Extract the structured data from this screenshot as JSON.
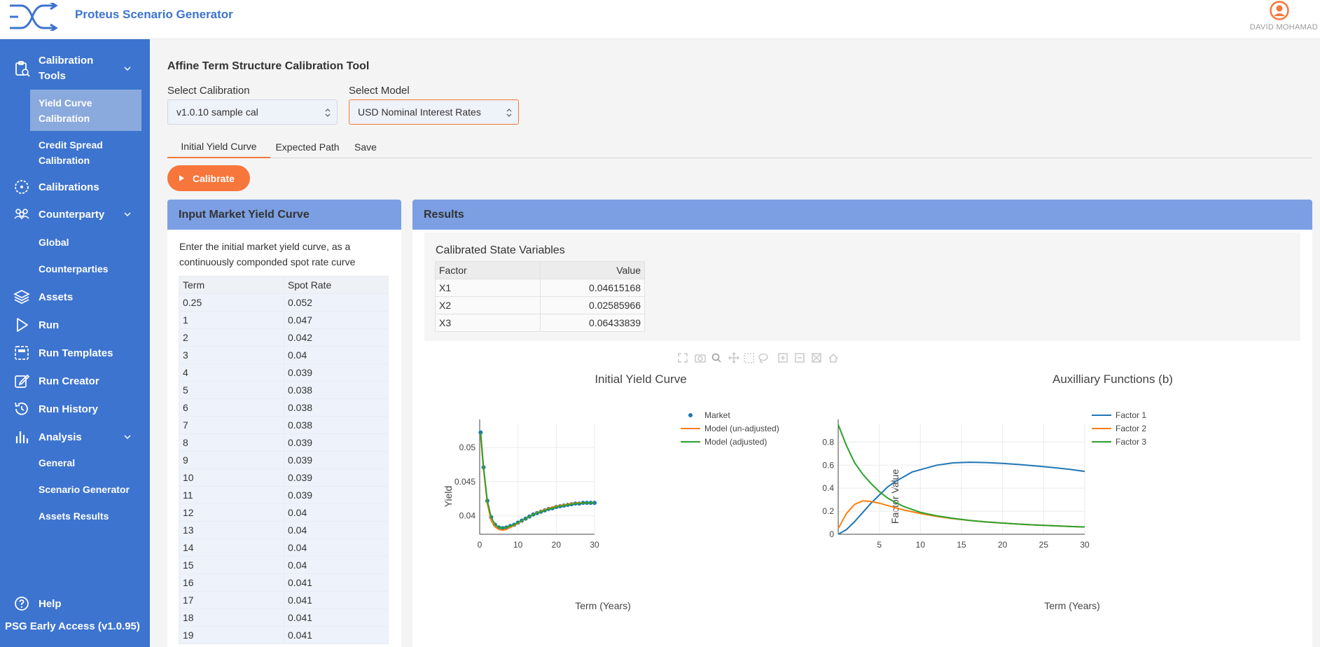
{
  "header": {
    "title": "Proteus Scenario Generator",
    "user_name": "DAVID MOHAMAD"
  },
  "sidebar": {
    "items": [
      {
        "label": "Calibration Tools",
        "icon": "clipboard-icon"
      },
      {
        "label": "Yield Curve Calibration"
      },
      {
        "label": "Credit Spread Calibration"
      },
      {
        "label": "Calibrations",
        "icon": "target-icon"
      },
      {
        "label": "Counterparty",
        "icon": "people-icon"
      },
      {
        "label": "Global"
      },
      {
        "label": "Counterparties"
      },
      {
        "label": "Assets",
        "icon": "layers-icon"
      },
      {
        "label": "Run",
        "icon": "play-icon"
      },
      {
        "label": "Run Templates",
        "icon": "template-icon"
      },
      {
        "label": "Run Creator",
        "icon": "edit-icon"
      },
      {
        "label": "Run History",
        "icon": "history-icon"
      },
      {
        "label": "Analysis",
        "icon": "bar-chart-icon"
      },
      {
        "label": "General"
      },
      {
        "label": "Scenario Generator"
      },
      {
        "label": "Assets Results"
      },
      {
        "label": "Help",
        "icon": "help-icon"
      }
    ],
    "version": "PSG Early Access (v1.0.95)"
  },
  "main": {
    "title": "Affine Term Structure Calibration Tool",
    "select_calibration_label": "Select Calibration",
    "select_calibration_value": "v1.0.10 sample cal",
    "select_model_label": "Select Model",
    "select_model_value": "USD Nominal Interest Rates",
    "tabs": [
      "Initial Yield Curve",
      "Expected Path",
      "Save"
    ],
    "active_tab": "Initial Yield Curve",
    "calibrate_label": "Calibrate"
  },
  "input_card": {
    "title": "Input Market Yield Curve",
    "description": "Enter the initial market yield curve, as a continuously componded spot rate curve",
    "columns": [
      "Term",
      "Spot Rate"
    ],
    "rows": [
      [
        "0.25",
        "0.052"
      ],
      [
        "1",
        "0.047"
      ],
      [
        "2",
        "0.042"
      ],
      [
        "3",
        "0.04"
      ],
      [
        "4",
        "0.039"
      ],
      [
        "5",
        "0.038"
      ],
      [
        "6",
        "0.038"
      ],
      [
        "7",
        "0.038"
      ],
      [
        "8",
        "0.039"
      ],
      [
        "9",
        "0.039"
      ],
      [
        "10",
        "0.039"
      ],
      [
        "11",
        "0.039"
      ],
      [
        "12",
        "0.04"
      ],
      [
        "13",
        "0.04"
      ],
      [
        "14",
        "0.04"
      ],
      [
        "15",
        "0.04"
      ],
      [
        "16",
        "0.041"
      ],
      [
        "17",
        "0.041"
      ],
      [
        "18",
        "0.041"
      ],
      [
        "19",
        "0.041"
      ]
    ]
  },
  "results_card": {
    "title": "Results",
    "state_title": "Calibrated State Variables",
    "state_columns": [
      "Factor",
      "Value"
    ],
    "state_rows": [
      [
        "X1",
        "0.04615168"
      ],
      [
        "X2",
        "0.02585966"
      ],
      [
        "X3",
        "0.06433839"
      ]
    ]
  },
  "chart_data": [
    {
      "type": "line",
      "title": "Initial Yield Curve",
      "xlabel": "Term (Years)",
      "ylabel": "Yield",
      "xlim": [
        0,
        30
      ],
      "ylim": [
        0.0373,
        0.0535
      ],
      "xticks": [
        0,
        10,
        20,
        30
      ],
      "yticks": [
        0.04,
        0.045,
        0.05
      ],
      "yticklabels": [
        "0.04",
        "0.045",
        "0.05"
      ],
      "grid": true,
      "legend": "top-right",
      "series": [
        {
          "name": "Market",
          "mode": "markers",
          "color": "#1f77b4",
          "x": [
            0.25,
            1,
            2,
            3,
            4,
            5,
            6,
            7,
            8,
            9,
            10,
            11,
            12,
            13,
            14,
            15,
            16,
            17,
            18,
            19,
            20,
            21,
            22,
            23,
            24,
            25,
            26,
            27,
            28,
            29,
            30
          ],
          "y": [
            0.0522,
            0.0471,
            0.0422,
            0.0398,
            0.0387,
            0.0383,
            0.0382,
            0.0383,
            0.0385,
            0.0387,
            0.039,
            0.0393,
            0.0396,
            0.0399,
            0.0402,
            0.0404,
            0.0406,
            0.0408,
            0.041,
            0.0411,
            0.0413,
            0.0414,
            0.0415,
            0.0416,
            0.0417,
            0.0418,
            0.0418,
            0.0419,
            0.0419,
            0.0419,
            0.0419
          ]
        },
        {
          "name": "Model (un-adjusted)",
          "mode": "lines",
          "color": "#ff7f0e",
          "x": [
            0.25,
            1,
            2,
            3,
            4,
            5,
            6,
            7,
            8,
            10,
            12,
            14,
            16,
            18,
            20,
            22,
            24,
            26,
            28,
            30
          ],
          "y": [
            0.0516,
            0.0468,
            0.0418,
            0.0393,
            0.0384,
            0.038,
            0.0379,
            0.038,
            0.0383,
            0.0389,
            0.0396,
            0.0402,
            0.0407,
            0.0411,
            0.0414,
            0.0416,
            0.0418,
            0.0419,
            0.0419,
            0.0419
          ]
        },
        {
          "name": "Model (adjusted)",
          "mode": "lines",
          "color": "#2ca02c",
          "x": [
            0.25,
            1,
            2,
            3,
            4,
            5,
            6,
            7,
            8,
            9,
            10,
            11,
            12,
            13,
            14,
            15,
            16,
            17,
            18,
            19,
            20,
            21,
            22,
            23,
            24,
            25,
            26,
            27,
            28,
            29,
            30
          ],
          "y": [
            0.0522,
            0.0471,
            0.0422,
            0.0398,
            0.0387,
            0.0383,
            0.0382,
            0.0383,
            0.0385,
            0.0387,
            0.039,
            0.0393,
            0.0396,
            0.0399,
            0.0402,
            0.0404,
            0.0406,
            0.0408,
            0.041,
            0.0411,
            0.0413,
            0.0414,
            0.0415,
            0.0416,
            0.0417,
            0.0418,
            0.0418,
            0.0419,
            0.0419,
            0.0419,
            0.0419
          ]
        }
      ]
    },
    {
      "type": "line",
      "title": "Auxilliary Functions (b)",
      "xlabel": "Term (Years)",
      "ylabel": "Factor Value",
      "xlim": [
        0,
        30
      ],
      "ylim": [
        0,
        0.96
      ],
      "xticks": [
        5,
        10,
        15,
        20,
        25,
        30
      ],
      "yticks": [
        0,
        0.2,
        0.4,
        0.6,
        0.8
      ],
      "yticklabels": [
        "0",
        "0.2",
        "0.4",
        "0.6",
        "0.8"
      ],
      "grid": true,
      "legend": "top-right",
      "series": [
        {
          "name": "Factor 1",
          "color": "#1f77b4",
          "x": [
            0,
            1,
            2,
            3,
            4,
            5,
            6,
            7,
            8,
            9,
            10,
            12,
            14,
            16,
            18,
            20,
            22,
            24,
            26,
            28,
            30
          ],
          "y": [
            0,
            0.04,
            0.11,
            0.19,
            0.27,
            0.34,
            0.41,
            0.46,
            0.5,
            0.54,
            0.56,
            0.6,
            0.62,
            0.625,
            0.622,
            0.615,
            0.605,
            0.593,
            0.58,
            0.565,
            0.545
          ]
        },
        {
          "name": "Factor 2",
          "color": "#ff7f0e",
          "x": [
            0,
            1,
            2,
            3,
            4,
            5,
            6,
            7,
            8,
            10,
            12,
            14,
            16,
            18,
            20,
            22,
            24,
            26,
            28,
            30
          ],
          "y": [
            0.05,
            0.18,
            0.26,
            0.29,
            0.285,
            0.27,
            0.25,
            0.23,
            0.21,
            0.18,
            0.155,
            0.135,
            0.12,
            0.107,
            0.097,
            0.088,
            0.08,
            0.074,
            0.068,
            0.063
          ]
        },
        {
          "name": "Factor 3",
          "color": "#2ca02c",
          "x": [
            0,
            1,
            2,
            3,
            4,
            5,
            6,
            7,
            8,
            10,
            12,
            14,
            16,
            18,
            20,
            22,
            24,
            26,
            28,
            30
          ],
          "y": [
            0.95,
            0.77,
            0.62,
            0.52,
            0.44,
            0.37,
            0.315,
            0.275,
            0.24,
            0.19,
            0.16,
            0.138,
            0.12,
            0.107,
            0.097,
            0.088,
            0.08,
            0.074,
            0.068,
            0.063
          ]
        }
      ]
    }
  ]
}
